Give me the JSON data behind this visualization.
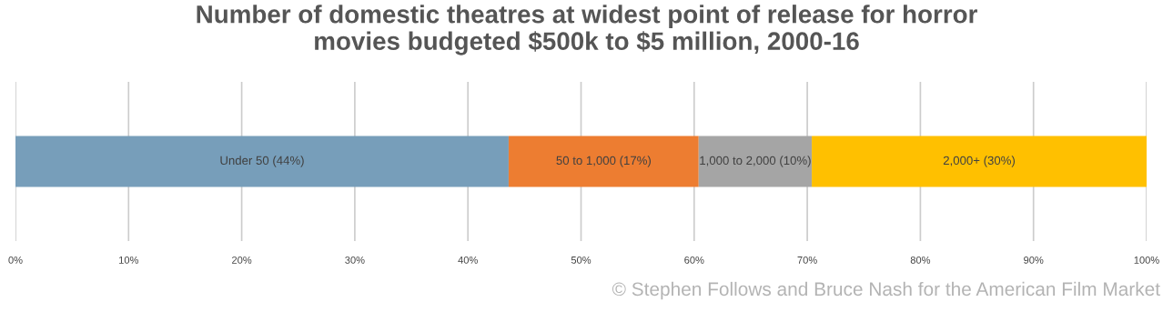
{
  "chart_data": {
    "type": "bar",
    "orientation": "horizontal",
    "stacked": true,
    "title": "Number of domestic theatres at widest point of release for horror\nmovies budgeted $500k to $5 million, 2000-16",
    "categories": [
      null
    ],
    "series": [
      {
        "name": "Under 50 (44%)",
        "color": "#779eba",
        "values": [
          43.6
        ]
      },
      {
        "name": "50 to 1,000 (17%)",
        "color": "#ed7d31",
        "values": [
          16.8
        ]
      },
      {
        "name": "1,000 to 2,000 (10%)",
        "color": "#a5a5a5",
        "values": [
          10.0
        ]
      },
      {
        "name": "2,000+ (30%)",
        "color": "#ffc000",
        "values": [
          29.6
        ]
      }
    ],
    "xlim": [
      0,
      100
    ],
    "xticks": [
      {
        "value": 0,
        "label": "0%"
      },
      {
        "value": 10,
        "label": "10%"
      },
      {
        "value": 20,
        "label": "20%"
      },
      {
        "value": 30,
        "label": "30%"
      },
      {
        "value": 40,
        "label": "40%"
      },
      {
        "value": 50,
        "label": "50%"
      },
      {
        "value": 60,
        "label": "60%"
      },
      {
        "value": 70,
        "label": "70%"
      },
      {
        "value": 80,
        "label": "80%"
      },
      {
        "value": 90,
        "label": "90%"
      },
      {
        "value": 100,
        "label": "100%"
      }
    ],
    "grid": "x",
    "legend": false,
    "annotations": [
      "© Stephen Follows and Bruce Nash for the American Film Market"
    ]
  }
}
